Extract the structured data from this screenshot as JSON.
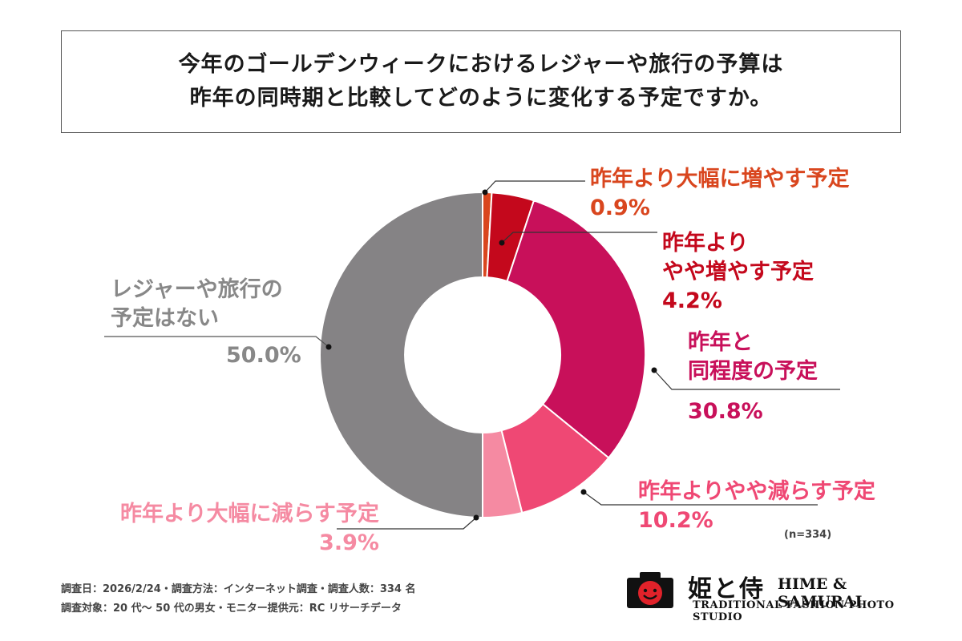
{
  "title": {
    "line1": "今年のゴールデンウィークにおけるレジャーや旅行の予算は",
    "line2": "昨年の同時期と比較してどのように変化する予定ですか。"
  },
  "chart_data": {
    "type": "pie",
    "style": "donut",
    "slices": [
      {
        "label": "昨年より大幅に増やす予定",
        "value": 0.9,
        "display": "0.9%",
        "color": "#d9461e"
      },
      {
        "label": "昨年より やや増やす予定",
        "value": 4.2,
        "display": "4.2%",
        "color": "#c4081c"
      },
      {
        "label": "昨年と 同程度の予定",
        "value": 30.8,
        "display": "30.8%",
        "color": "#c8105a"
      },
      {
        "label": "昨年よりやや減らす予定",
        "value": 10.2,
        "display": "10.2%",
        "color": "#ef4874"
      },
      {
        "label": "昨年より大幅に減らす予定",
        "value": 3.9,
        "display": "3.9%",
        "color": "#f58aa2"
      },
      {
        "label": "レジャーや旅行の 予定はない",
        "value": 50.0,
        "display": "50.0%",
        "color": "#858385"
      }
    ],
    "n_note": "(n=334)"
  },
  "labels": {
    "large_increase": {
      "text": "昨年より大幅に増やす予定",
      "pct": "0.9%"
    },
    "slight_increase": {
      "line1": "昨年より",
      "line2": "やや増やす予定",
      "pct": "4.2%"
    },
    "same": {
      "line1": "昨年と",
      "line2": "同程度の予定",
      "pct": "30.8%"
    },
    "slight_decrease": {
      "text": "昨年よりやや減らす予定",
      "pct": "10.2%"
    },
    "large_decrease": {
      "text": "昨年より大幅に減らす予定",
      "pct": "3.9%"
    },
    "no_plan": {
      "line1": "レジャーや旅行の",
      "line2": "予定はない",
      "pct": "50.0%"
    }
  },
  "footer": {
    "line1": "調査日：2026/2/24・調査方法：インターネット調査・調査人数：334 名",
    "line2": "調査対象：20 代〜 50 代の男女・モニター提供元：RC リサーチデータ"
  },
  "logo": {
    "kanji": "姫と侍",
    "english": "HIME & SAMURAI",
    "subtitle": "TRADITIONAL FASHION PHOTO STUDIO",
    "icon": "camera-smiley-icon"
  }
}
